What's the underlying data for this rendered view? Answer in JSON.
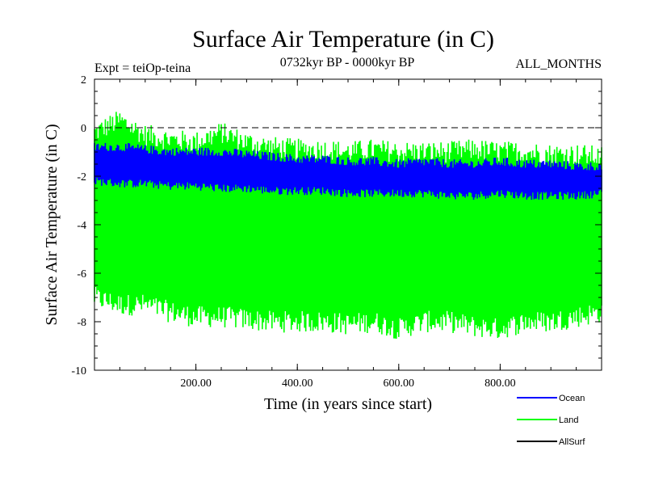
{
  "chart_data": {
    "type": "line",
    "title": "Surface Air Temperature (in C)",
    "subtitle_left": "Expt = teiOp-teina",
    "subtitle_center": "0732kyr BP - 0000kyr BP",
    "subtitle_right": "ALL_MONTHS",
    "xlabel": "Time (in years since start)",
    "ylabel": "Surface Air Temperature (in C)",
    "xlim": [
      0,
      1000
    ],
    "ylim": [
      -10,
      2
    ],
    "x_ticks": [
      200,
      400,
      600,
      800
    ],
    "x_tick_labels": [
      "200.00",
      "400.00",
      "600.00",
      "800.00"
    ],
    "y_ticks": [
      2,
      0,
      -2,
      -4,
      -6,
      -8,
      -10
    ],
    "y_tick_labels": [
      "2",
      "0",
      "-2",
      "-4",
      "-6",
      "-8",
      "-10"
    ],
    "reference_line_y": 0,
    "series": [
      {
        "name": "Land",
        "color": "#00ff00",
        "x": [
          0,
          50,
          100,
          150,
          200,
          250,
          300,
          350,
          400,
          450,
          500,
          550,
          600,
          650,
          700,
          750,
          800,
          850,
          900,
          950,
          1000
        ],
        "upper": [
          -0.2,
          0.3,
          -0.3,
          -0.5,
          -0.6,
          -0.2,
          -0.6,
          -0.8,
          -0.9,
          -0.9,
          -1.0,
          -0.9,
          -1.0,
          -1.0,
          -1.0,
          -0.9,
          -1.0,
          -1.0,
          -1.1,
          -1.1,
          -1.2
        ],
        "lower": [
          -7.0,
          -7.3,
          -7.3,
          -7.6,
          -7.8,
          -7.8,
          -7.9,
          -8.0,
          -8.0,
          -8.0,
          -8.1,
          -8.0,
          -8.3,
          -8.0,
          -8.0,
          -8.2,
          -8.3,
          -8.0,
          -8.0,
          -7.8,
          -7.6
        ]
      },
      {
        "name": "Ocean",
        "color": "#0000ff",
        "x": [
          0,
          50,
          100,
          150,
          200,
          250,
          300,
          350,
          400,
          450,
          500,
          550,
          600,
          650,
          700,
          750,
          800,
          850,
          900,
          950,
          1000
        ],
        "upper": [
          -0.8,
          -0.8,
          -0.9,
          -1.0,
          -1.0,
          -1.0,
          -1.1,
          -1.2,
          -1.3,
          -1.3,
          -1.4,
          -1.4,
          -1.5,
          -1.4,
          -1.5,
          -1.5,
          -1.4,
          -1.5,
          -1.5,
          -1.6,
          -1.6
        ],
        "lower": [
          -2.2,
          -2.3,
          -2.3,
          -2.4,
          -2.4,
          -2.5,
          -2.5,
          -2.6,
          -2.6,
          -2.6,
          -2.7,
          -2.7,
          -2.7,
          -2.7,
          -2.8,
          -2.8,
          -2.7,
          -2.8,
          -2.8,
          -2.8,
          -2.7
        ]
      },
      {
        "name": "AllSurf",
        "color": "#000000",
        "x": [],
        "upper": [],
        "lower": []
      }
    ],
    "legend": [
      {
        "label": "Ocean",
        "color": "#0000ff"
      },
      {
        "label": "Land",
        "color": "#00ff00"
      },
      {
        "label": "AllSurf",
        "color": "#000000"
      }
    ],
    "legend_position": "bottom-right"
  }
}
